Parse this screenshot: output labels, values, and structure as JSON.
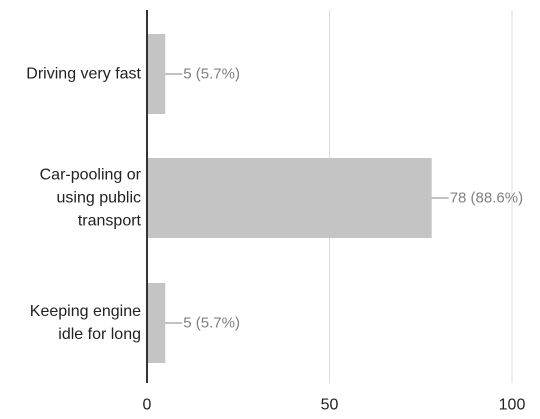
{
  "chart_data": {
    "type": "bar",
    "orientation": "horizontal",
    "categories": [
      [
        "Driving very fast"
      ],
      [
        "Car-pooling or",
        "using public",
        "transport"
      ],
      [
        "Keeping engine",
        "idle for long"
      ]
    ],
    "values": [
      5,
      78,
      5
    ],
    "data_labels": [
      "5 (5.7%)",
      "78 (88.6%)",
      "5 (5.7%)"
    ],
    "xlim": [
      0,
      100
    ],
    "x_ticks": [
      0,
      50,
      100
    ],
    "grid": true,
    "legend": "none",
    "colors": {
      "bar": "#c4c4c4",
      "gridline": "#dcdcdc",
      "axis": "#333333",
      "leader": "#9e9e9e",
      "data_label": "#808080"
    }
  }
}
